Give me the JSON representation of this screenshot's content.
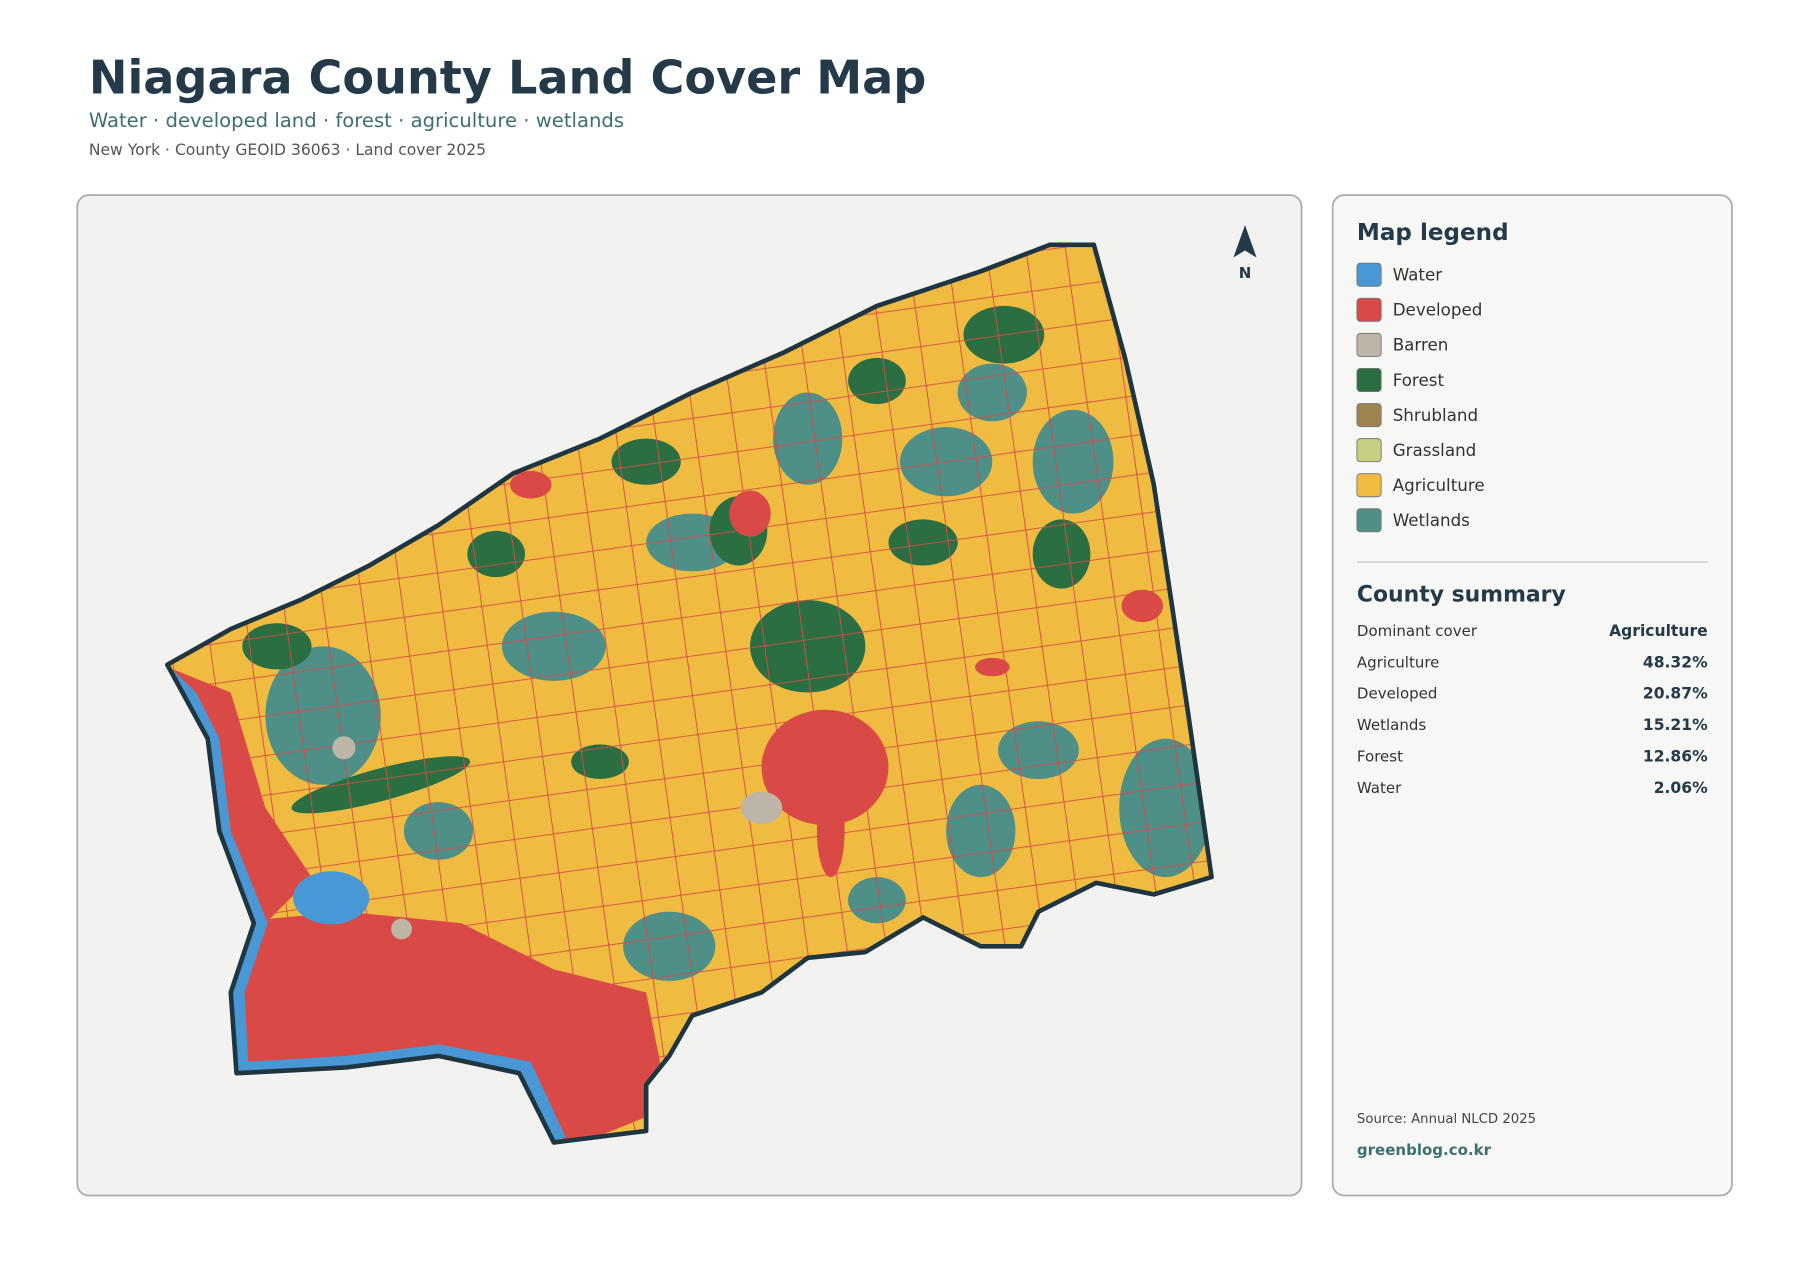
{
  "header": {
    "title": "Niagara County Land Cover Map",
    "subtitle": "Water · developed land · forest · agriculture · wetlands",
    "meta": "New York · County GEOID 36063 · Land cover 2025"
  },
  "map": {
    "north_label": "N"
  },
  "legend": {
    "title": "Map legend",
    "items": [
      {
        "label": "Water",
        "color": "#4a97d6"
      },
      {
        "label": "Developed",
        "color": "#d94a47"
      },
      {
        "label": "Barren",
        "color": "#bdb5a5"
      },
      {
        "label": "Forest",
        "color": "#2a6e42"
      },
      {
        "label": "Shrubland",
        "color": "#a0844f"
      },
      {
        "label": "Grassland",
        "color": "#c8ce82"
      },
      {
        "label": "Agriculture",
        "color": "#f0bb41"
      },
      {
        "label": "Wetlands",
        "color": "#4e8f88"
      }
    ]
  },
  "summary": {
    "title": "County summary",
    "rows": [
      [
        "Dominant cover",
        "Agriculture"
      ],
      [
        "Agriculture",
        "48.32%"
      ],
      [
        "Developed",
        "20.87%"
      ],
      [
        "Wetlands",
        "15.21%"
      ],
      [
        "Forest",
        "12.86%"
      ],
      [
        "Water",
        "2.06%"
      ]
    ]
  },
  "footer": {
    "source": "Source: Annual NLCD 2025",
    "site": "greenblog.co.kr"
  }
}
